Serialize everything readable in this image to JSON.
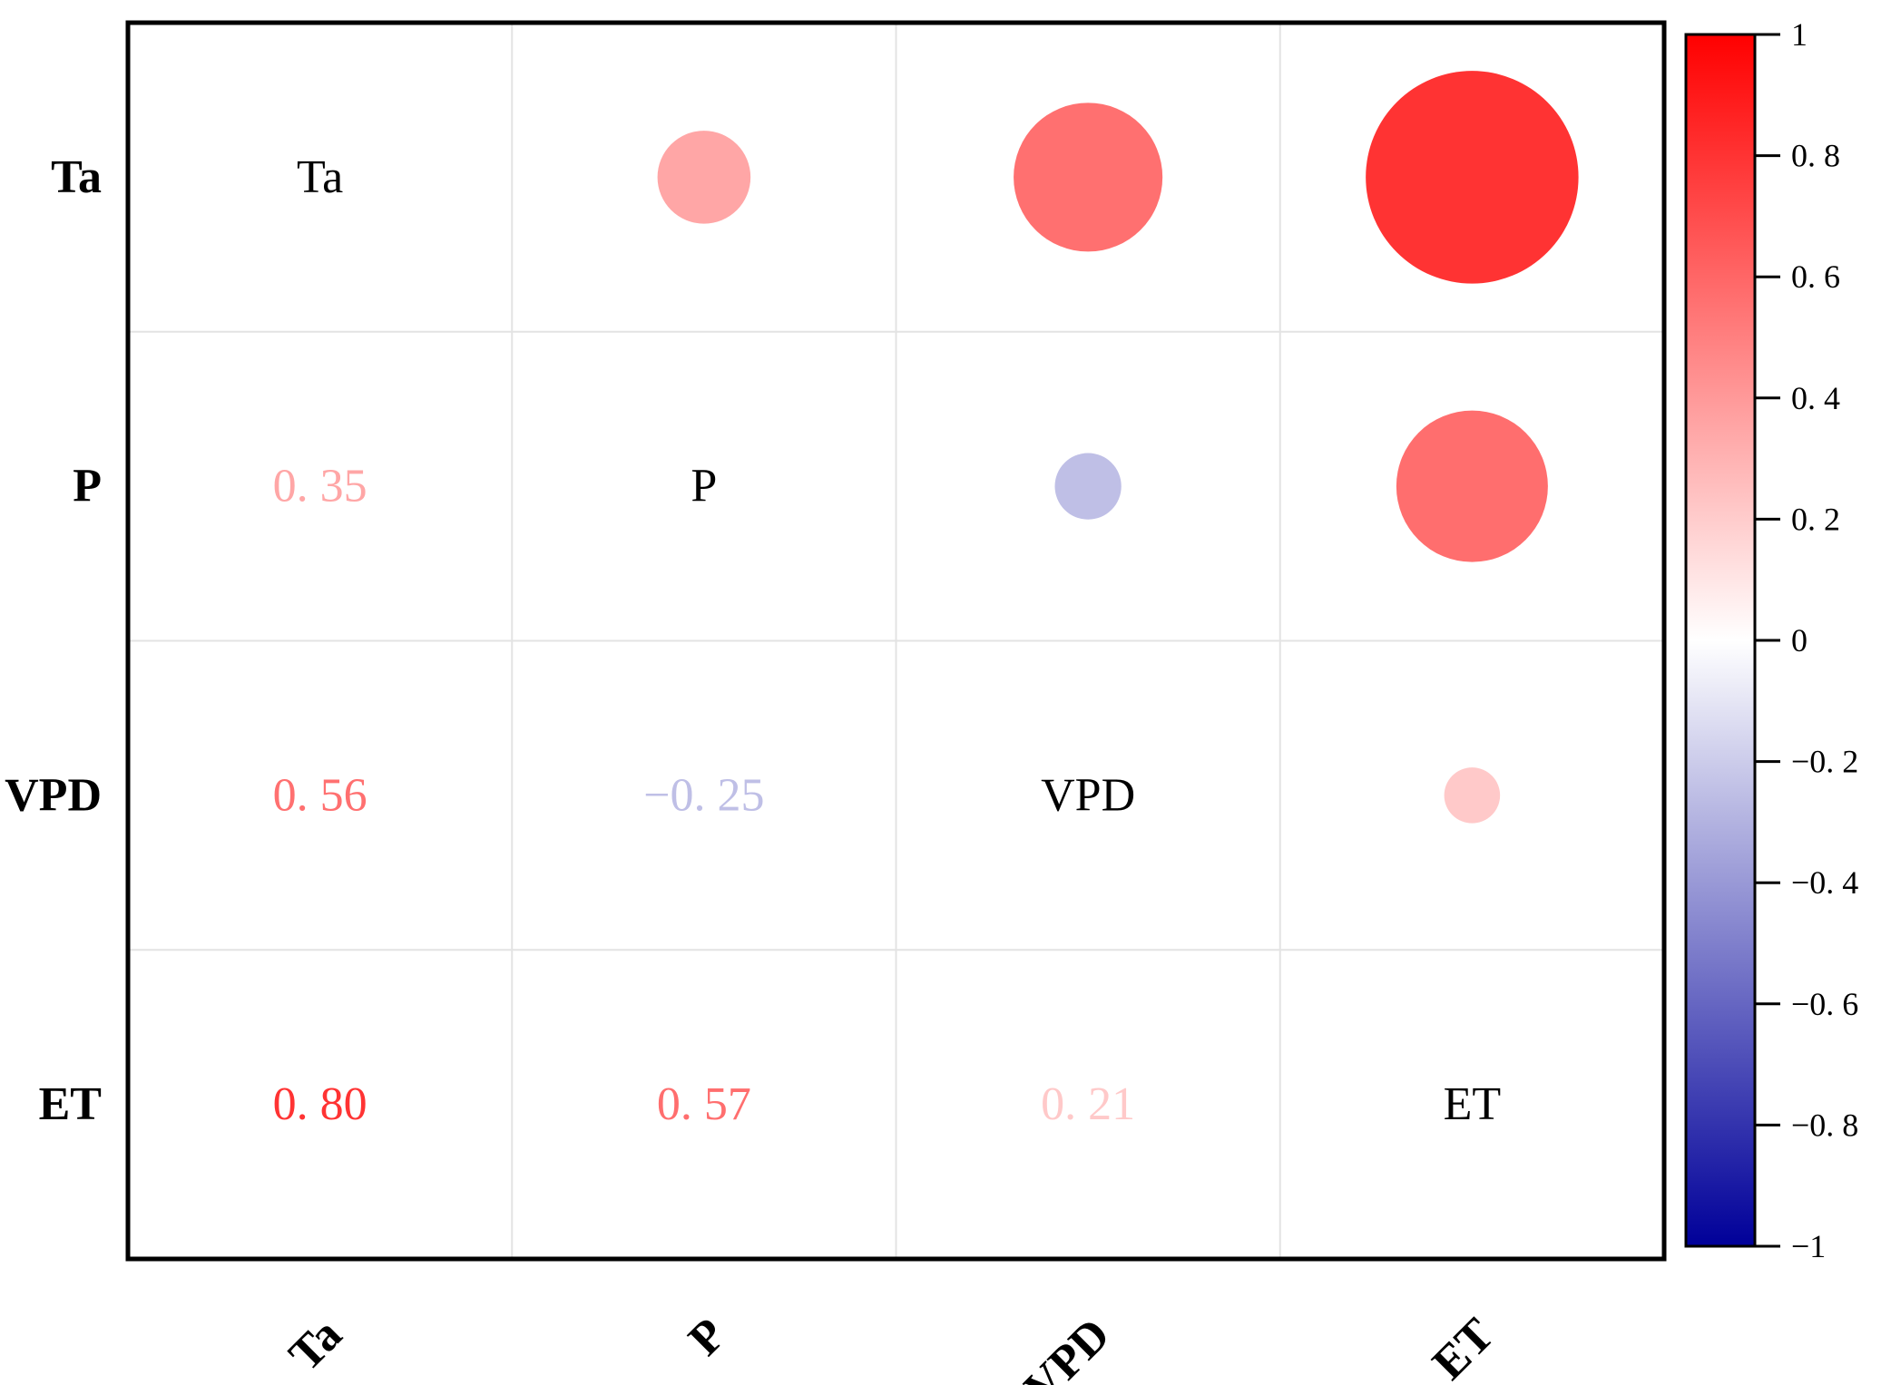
{
  "chart_data": {
    "type": "heatmap",
    "subtype": "correlation-matrix",
    "variables": [
      "Ta",
      "P",
      "VPD",
      "ET"
    ],
    "matrix": [
      [
        1.0,
        0.35,
        0.56,
        0.8
      ],
      [
        0.35,
        1.0,
        -0.25,
        0.57
      ],
      [
        0.56,
        -0.25,
        1.0,
        0.21
      ],
      [
        0.8,
        0.57,
        0.21,
        1.0
      ]
    ],
    "upper_triangle": "circles",
    "lower_triangle": "values",
    "diagonal": "variable names",
    "lower_value_labels": [
      {
        "row": 1,
        "col": 0,
        "text": "0. 35"
      },
      {
        "row": 2,
        "col": 0,
        "text": "0. 56"
      },
      {
        "row": 2,
        "col": 1,
        "text": "−0. 25"
      },
      {
        "row": 3,
        "col": 0,
        "text": "0. 80"
      },
      {
        "row": 3,
        "col": 1,
        "text": "0. 57"
      },
      {
        "row": 3,
        "col": 2,
        "text": "0. 21"
      }
    ],
    "colorbar": {
      "range": [
        -1,
        1
      ],
      "colors": {
        "positive": "#ff0000",
        "zero": "#ffffff",
        "negative": "#000099"
      },
      "ticks": [
        {
          "value": 1,
          "label": "1"
        },
        {
          "value": 0.8,
          "label": "0. 8"
        },
        {
          "value": 0.6,
          "label": "0. 6"
        },
        {
          "value": 0.4,
          "label": "0. 4"
        },
        {
          "value": 0.2,
          "label": "0. 2"
        },
        {
          "value": 0,
          "label": "0"
        },
        {
          "value": -0.2,
          "label": "−0. 2"
        },
        {
          "value": -0.4,
          "label": "−0. 4"
        },
        {
          "value": -0.6,
          "label": "−0. 6"
        },
        {
          "value": -0.8,
          "label": "−0. 8"
        },
        {
          "value": -1,
          "label": "−1"
        }
      ]
    },
    "grid": true
  }
}
